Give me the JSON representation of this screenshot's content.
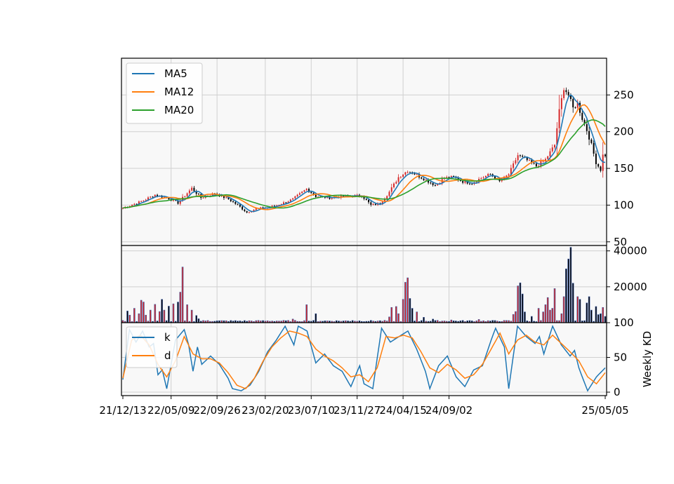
{
  "chart_data": {
    "type": "candlestick",
    "x_tick_labels": [
      "21/12/13",
      "22/05/09",
      "22/09/26",
      "23/02/20",
      "23/07/10",
      "23/11/27",
      "24/04/15",
      "24/09/02",
      "25/05/05"
    ],
    "colors": {
      "up": "#d62728",
      "down": "#000000",
      "ma5": "#1f77b4",
      "ma12": "#ff7f0e",
      "ma20": "#2ca02c",
      "k": "#1f77b4",
      "d": "#ff7f0e",
      "volume_edge": "#3b5ba5"
    },
    "price_panel": {
      "ylim": [
        45,
        300
      ],
      "yticks": [
        "50",
        "100",
        "150",
        "200",
        "250"
      ],
      "legend": [
        "MA5",
        "MA12",
        "MA20"
      ],
      "legend_position": "upper-left",
      "close_anchors": [
        [
          0,
          96
        ],
        [
          8,
          105
        ],
        [
          14,
          114
        ],
        [
          20,
          109
        ],
        [
          24,
          103
        ],
        [
          30,
          123
        ],
        [
          34,
          110
        ],
        [
          40,
          116
        ],
        [
          46,
          108
        ],
        [
          50,
          100
        ],
        [
          54,
          90
        ],
        [
          58,
          95
        ],
        [
          64,
          97
        ],
        [
          70,
          103
        ],
        [
          74,
          108
        ],
        [
          80,
          122
        ],
        [
          84,
          112
        ],
        [
          90,
          110
        ],
        [
          96,
          112
        ],
        [
          104,
          113
        ],
        [
          108,
          100
        ],
        [
          112,
          102
        ],
        [
          116,
          118
        ],
        [
          120,
          138
        ],
        [
          124,
          147
        ],
        [
          128,
          141
        ],
        [
          132,
          134
        ],
        [
          136,
          127
        ],
        [
          140,
          137
        ],
        [
          144,
          138
        ],
        [
          148,
          132
        ],
        [
          152,
          130
        ],
        [
          156,
          137
        ],
        [
          160,
          142
        ],
        [
          164,
          132
        ],
        [
          168,
          142
        ],
        [
          172,
          168
        ],
        [
          176,
          161
        ],
        [
          180,
          153
        ],
        [
          184,
          162
        ],
        [
          188,
          182
        ],
        [
          190,
          228
        ],
        [
          192,
          260
        ],
        [
          194,
          250
        ],
        [
          196,
          232
        ],
        [
          198,
          238
        ],
        [
          200,
          218
        ],
        [
          202,
          202
        ],
        [
          204,
          182
        ],
        [
          206,
          158
        ],
        [
          208,
          148
        ],
        [
          209,
          168
        ]
      ]
    },
    "volume_panel": {
      "ylim": [
        0,
        43000
      ],
      "yticks": [
        "20000",
        "40000"
      ],
      "peaks": [
        [
          2,
          6500
        ],
        [
          3,
          4200
        ],
        [
          5,
          8000
        ],
        [
          7,
          5000
        ],
        [
          8,
          12500
        ],
        [
          9,
          11500
        ],
        [
          10,
          4200
        ],
        [
          12,
          7000
        ],
        [
          14,
          10200
        ],
        [
          16,
          6200
        ],
        [
          17,
          13000
        ],
        [
          18,
          7000
        ],
        [
          20,
          9200
        ],
        [
          22,
          10500
        ],
        [
          24,
          11500
        ],
        [
          25,
          17000
        ],
        [
          26,
          31000
        ],
        [
          28,
          10000
        ],
        [
          30,
          7000
        ],
        [
          32,
          4000
        ],
        [
          33,
          2200
        ],
        [
          37,
          1200
        ],
        [
          60,
          1000
        ],
        [
          74,
          2000
        ],
        [
          80,
          10000
        ],
        [
          84,
          5000
        ],
        [
          100,
          1200
        ],
        [
          116,
          3200
        ],
        [
          117,
          8500
        ],
        [
          119,
          9000
        ],
        [
          120,
          5000
        ],
        [
          122,
          13000
        ],
        [
          123,
          22500
        ],
        [
          124,
          25000
        ],
        [
          125,
          13500
        ],
        [
          126,
          8000
        ],
        [
          128,
          6000
        ],
        [
          131,
          3000
        ],
        [
          135,
          2000
        ],
        [
          143,
          1500
        ],
        [
          155,
          1800
        ],
        [
          170,
          4600
        ],
        [
          171,
          6200
        ],
        [
          172,
          20500
        ],
        [
          173,
          22200
        ],
        [
          174,
          16000
        ],
        [
          175,
          6000
        ],
        [
          178,
          3500
        ],
        [
          181,
          8000
        ],
        [
          183,
          6000
        ],
        [
          184,
          10000
        ],
        [
          185,
          14000
        ],
        [
          186,
          7000
        ],
        [
          187,
          8000
        ],
        [
          188,
          19000
        ],
        [
          191,
          5000
        ],
        [
          192,
          14500
        ],
        [
          193,
          30000
        ],
        [
          194,
          35500
        ],
        [
          195,
          42000
        ],
        [
          196,
          22000
        ],
        [
          198,
          14500
        ],
        [
          199,
          13000
        ],
        [
          202,
          11000
        ],
        [
          203,
          14500
        ],
        [
          204,
          7000
        ],
        [
          206,
          9000
        ],
        [
          207,
          4500
        ],
        [
          208,
          5000
        ],
        [
          209,
          8500
        ],
        [
          210,
          3500
        ]
      ]
    },
    "kd_panel": {
      "ylim": [
        -5,
        100
      ],
      "yticks": [
        "0",
        "50",
        "100"
      ],
      "ylabel": "Weekly KD",
      "legend": [
        "k",
        "d"
      ],
      "legend_position": "upper-left",
      "k_anchors": [
        [
          0,
          18
        ],
        [
          3,
          90
        ],
        [
          6,
          72
        ],
        [
          9,
          88
        ],
        [
          12,
          65
        ],
        [
          14,
          70
        ],
        [
          16,
          25
        ],
        [
          18,
          32
        ],
        [
          20,
          5
        ],
        [
          24,
          75
        ],
        [
          28,
          90
        ],
        [
          30,
          68
        ],
        [
          32,
          30
        ],
        [
          34,
          65
        ],
        [
          36,
          40
        ],
        [
          40,
          52
        ],
        [
          44,
          40
        ],
        [
          48,
          20
        ],
        [
          50,
          5
        ],
        [
          54,
          2
        ],
        [
          58,
          10
        ],
        [
          62,
          30
        ],
        [
          66,
          58
        ],
        [
          70,
          75
        ],
        [
          74,
          95
        ],
        [
          78,
          68
        ],
        [
          80,
          95
        ],
        [
          84,
          88
        ],
        [
          88,
          42
        ],
        [
          92,
          55
        ],
        [
          96,
          38
        ],
        [
          100,
          30
        ],
        [
          104,
          8
        ],
        [
          108,
          38
        ],
        [
          110,
          12
        ],
        [
          114,
          5
        ],
        [
          118,
          92
        ],
        [
          122,
          72
        ],
        [
          126,
          80
        ],
        [
          130,
          88
        ],
        [
          134,
          62
        ],
        [
          138,
          30
        ],
        [
          140,
          5
        ],
        [
          144,
          38
        ],
        [
          148,
          52
        ],
        [
          152,
          22
        ],
        [
          156,
          8
        ],
        [
          160,
          32
        ],
        [
          164,
          38
        ],
        [
          168,
          75
        ],
        [
          170,
          92
        ],
        [
          174,
          65
        ],
        [
          176,
          5
        ],
        [
          180,
          95
        ],
        [
          184,
          80
        ],
        [
          188,
          70
        ],
        [
          190,
          80
        ],
        [
          192,
          55
        ],
        [
          196,
          95
        ],
        [
          200,
          68
        ],
        [
          204,
          52
        ],
        [
          206,
          60
        ],
        [
          208,
          35
        ],
        [
          210,
          18
        ],
        [
          212,
          2
        ],
        [
          216,
          22
        ],
        [
          220,
          35
        ]
      ],
      "d_anchors": [
        [
          0,
          20
        ],
        [
          4,
          75
        ],
        [
          8,
          82
        ],
        [
          12,
          68
        ],
        [
          16,
          40
        ],
        [
          20,
          22
        ],
        [
          24,
          45
        ],
        [
          28,
          80
        ],
        [
          32,
          55
        ],
        [
          36,
          48
        ],
        [
          40,
          48
        ],
        [
          44,
          42
        ],
        [
          48,
          28
        ],
        [
          52,
          10
        ],
        [
          56,
          5
        ],
        [
          60,
          20
        ],
        [
          64,
          45
        ],
        [
          68,
          65
        ],
        [
          72,
          78
        ],
        [
          76,
          88
        ],
        [
          80,
          85
        ],
        [
          84,
          80
        ],
        [
          88,
          62
        ],
        [
          92,
          52
        ],
        [
          96,
          45
        ],
        [
          100,
          35
        ],
        [
          104,
          22
        ],
        [
          108,
          25
        ],
        [
          112,
          15
        ],
        [
          116,
          35
        ],
        [
          120,
          80
        ],
        [
          124,
          78
        ],
        [
          128,
          82
        ],
        [
          132,
          78
        ],
        [
          136,
          58
        ],
        [
          140,
          35
        ],
        [
          144,
          28
        ],
        [
          148,
          40
        ],
        [
          152,
          32
        ],
        [
          156,
          20
        ],
        [
          160,
          25
        ],
        [
          164,
          40
        ],
        [
          168,
          62
        ],
        [
          172,
          85
        ],
        [
          176,
          55
        ],
        [
          180,
          75
        ],
        [
          184,
          82
        ],
        [
          188,
          72
        ],
        [
          192,
          68
        ],
        [
          196,
          82
        ],
        [
          200,
          70
        ],
        [
          204,
          58
        ],
        [
          208,
          45
        ],
        [
          212,
          22
        ],
        [
          216,
          12
        ],
        [
          220,
          28
        ]
      ]
    }
  }
}
